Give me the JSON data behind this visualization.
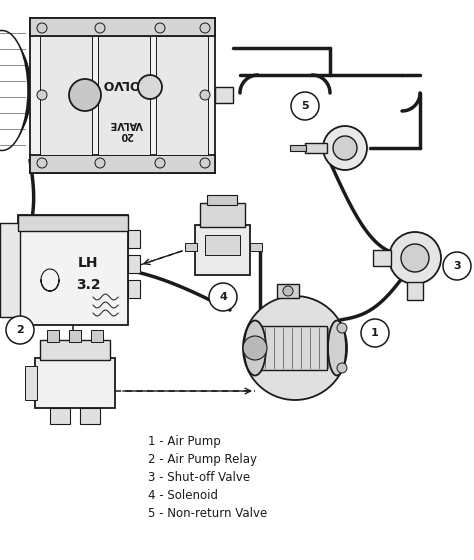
{
  "background_color": "#ffffff",
  "line_color": "#1a1a1a",
  "figsize": [
    4.74,
    5.6
  ],
  "dpi": 100,
  "legend": [
    "1 - Air Pump",
    "2 - Air Pump Relay",
    "3 - Shut-off Valve",
    "4 - Solenoid",
    "5 - Non-return Valve"
  ],
  "legend_fontsize": 8.5
}
